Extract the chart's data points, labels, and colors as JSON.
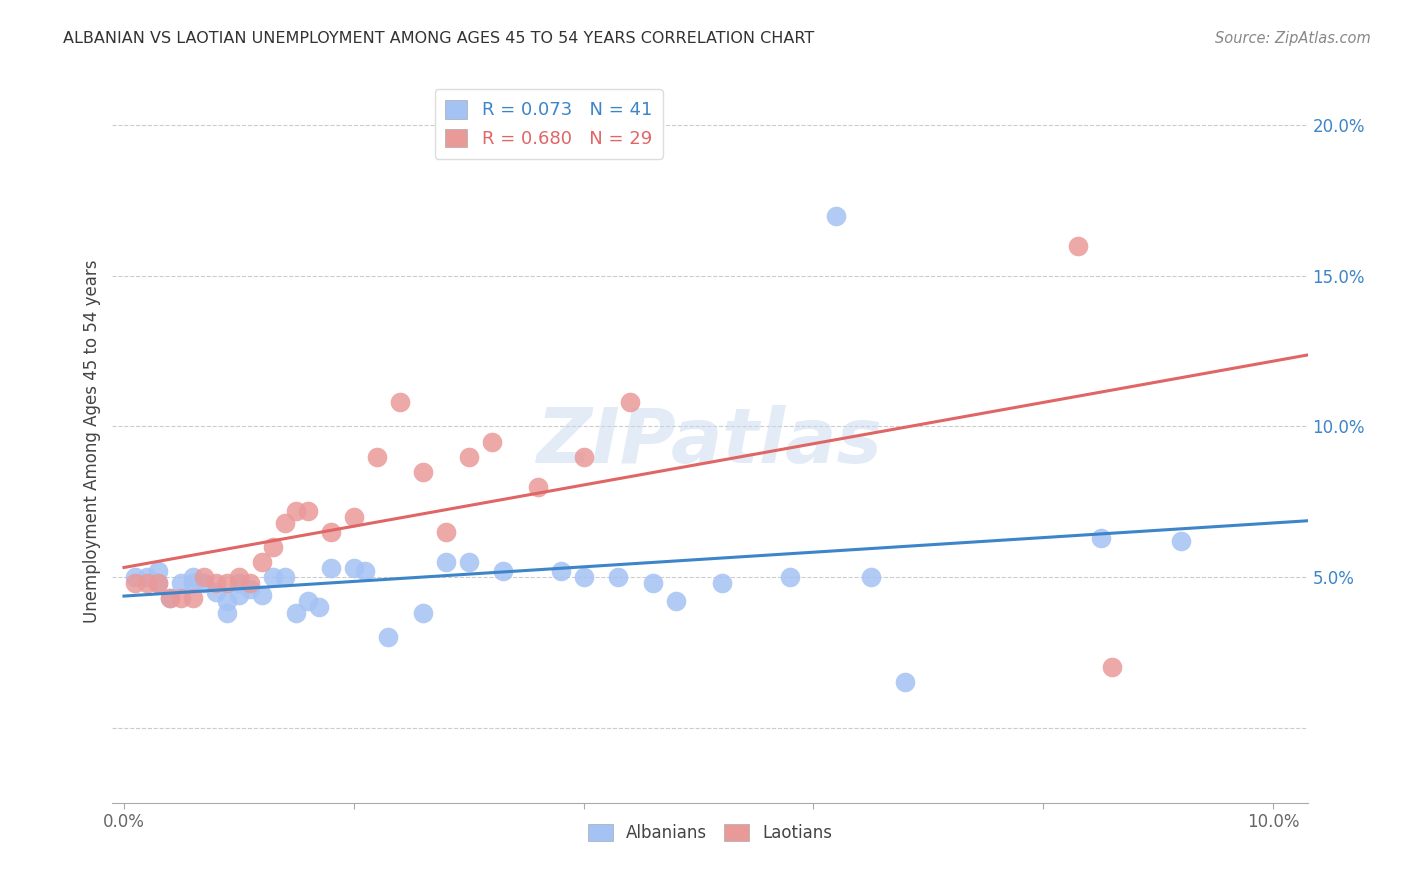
{
  "title": "ALBANIAN VS LAOTIAN UNEMPLOYMENT AMONG AGES 45 TO 54 YEARS CORRELATION CHART",
  "source": "Source: ZipAtlas.com",
  "ylabel": "Unemployment Among Ages 45 to 54 years",
  "xlim": [
    -0.001,
    0.103
  ],
  "ylim": [
    -0.025,
    0.215
  ],
  "albanian_R": 0.073,
  "albanian_N": 41,
  "laotian_R": 0.68,
  "laotian_N": 29,
  "albanian_color": "#a4c2f4",
  "laotian_color": "#ea9999",
  "albanian_line_color": "#3d85c8",
  "laotian_line_color": "#e06666",
  "watermark": "ZIPatlas",
  "albanian_x": [
    0.001,
    0.002,
    0.003,
    0.003,
    0.004,
    0.005,
    0.006,
    0.006,
    0.007,
    0.008,
    0.009,
    0.009,
    0.01,
    0.01,
    0.011,
    0.012,
    0.013,
    0.014,
    0.015,
    0.016,
    0.017,
    0.018,
    0.02,
    0.021,
    0.023,
    0.026,
    0.028,
    0.03,
    0.033,
    0.038,
    0.04,
    0.043,
    0.046,
    0.048,
    0.052,
    0.058,
    0.062,
    0.065,
    0.068,
    0.085,
    0.092
  ],
  "albanian_y": [
    0.05,
    0.05,
    0.048,
    0.052,
    0.043,
    0.048,
    0.048,
    0.05,
    0.048,
    0.045,
    0.038,
    0.042,
    0.044,
    0.048,
    0.046,
    0.044,
    0.05,
    0.05,
    0.038,
    0.042,
    0.04,
    0.053,
    0.053,
    0.052,
    0.03,
    0.038,
    0.055,
    0.055,
    0.052,
    0.052,
    0.05,
    0.05,
    0.048,
    0.042,
    0.048,
    0.05,
    0.17,
    0.05,
    0.015,
    0.063,
    0.062
  ],
  "laotian_x": [
    0.001,
    0.002,
    0.003,
    0.004,
    0.005,
    0.006,
    0.007,
    0.008,
    0.009,
    0.01,
    0.011,
    0.012,
    0.013,
    0.014,
    0.015,
    0.016,
    0.018,
    0.02,
    0.022,
    0.024,
    0.026,
    0.028,
    0.03,
    0.032,
    0.036,
    0.04,
    0.044,
    0.083,
    0.086
  ],
  "laotian_y": [
    0.048,
    0.048,
    0.048,
    0.043,
    0.043,
    0.043,
    0.05,
    0.048,
    0.048,
    0.05,
    0.048,
    0.055,
    0.06,
    0.068,
    0.072,
    0.072,
    0.065,
    0.07,
    0.09,
    0.108,
    0.085,
    0.065,
    0.09,
    0.095,
    0.08,
    0.09,
    0.108,
    0.16,
    0.02
  ]
}
